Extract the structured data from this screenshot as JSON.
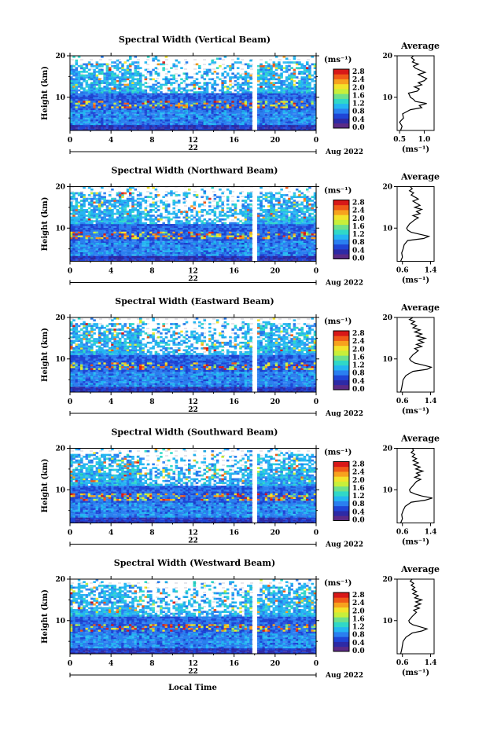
{
  "colors": {
    "colormap": [
      "#5b2a86",
      "#2d2aa6",
      "#1f45d6",
      "#2a7ff0",
      "#24b6f2",
      "#30d8c8",
      "#6fe08a",
      "#c8ef3a",
      "#f3e32a",
      "#f7a21e",
      "#f05a18",
      "#d81818"
    ],
    "missing": "#ffffff",
    "frame": "#000000"
  },
  "chart_data": [
    {
      "type": "heatmap",
      "title": "Spectral Width (Vertical Beam)",
      "ylabel": "Height (km)",
      "ylim": [
        2,
        20
      ],
      "xlim": [
        0,
        24
      ],
      "x_ticks": [
        "0",
        "4",
        "8",
        "12",
        "16",
        "20",
        "0"
      ],
      "date_label": "22",
      "month_label": "Aug 2022",
      "colorbar": {
        "unit": "(ms⁻¹)",
        "ticks": [
          "2.8",
          "2.4",
          "2.0",
          "1.6",
          "1.2",
          "0.8",
          "0.4",
          "0.0"
        ]
      },
      "average": {
        "title": "Average",
        "xlabel": "(ms⁻¹)",
        "xticks": [
          "0.5",
          "1.0"
        ],
        "xlim": [
          0.45,
          1.2
        ],
        "yticks": [
          "20",
          "10"
        ],
        "profile": [
          [
            2,
            0.52
          ],
          [
            3,
            0.55
          ],
          [
            4,
            0.5
          ],
          [
            5,
            0.58
          ],
          [
            6,
            0.56
          ],
          [
            7,
            0.72
          ],
          [
            7.5,
            0.95
          ],
          [
            8,
            0.9
          ],
          [
            8.5,
            1.05
          ],
          [
            9,
            0.82
          ],
          [
            9.5,
            0.78
          ],
          [
            10,
            0.72
          ],
          [
            10.5,
            0.7
          ],
          [
            11,
            0.68
          ],
          [
            11.5,
            0.86
          ],
          [
            12,
            0.9
          ],
          [
            12.5,
            0.8
          ],
          [
            13,
            0.95
          ],
          [
            13.5,
            0.88
          ],
          [
            14,
            1.0
          ],
          [
            14.5,
            1.05
          ],
          [
            15,
            0.96
          ],
          [
            15.5,
            0.88
          ],
          [
            16,
            1.02
          ],
          [
            16.5,
            0.92
          ],
          [
            17,
            0.82
          ],
          [
            17.5,
            0.78
          ],
          [
            18,
            0.88
          ],
          [
            18.5,
            0.76
          ],
          [
            19,
            0.8
          ],
          [
            19.5,
            0.74
          ],
          [
            20,
            0.78
          ]
        ]
      }
    },
    {
      "type": "heatmap",
      "title": "Spectral Width (Northward Beam)",
      "ylabel": "Height (km)",
      "ylim": [
        2,
        20
      ],
      "xlim": [
        0,
        24
      ],
      "x_ticks": [
        "0",
        "4",
        "8",
        "12",
        "16",
        "20",
        "0"
      ],
      "date_label": "22",
      "month_label": "Aug 2022",
      "colorbar": {
        "unit": "(ms⁻¹)",
        "ticks": [
          "2.8",
          "2.4",
          "2.0",
          "1.6",
          "1.2",
          "0.8",
          "0.4",
          "0.0"
        ]
      },
      "average": {
        "title": "Average",
        "xlabel": "(ms⁻¹)",
        "xticks": [
          "0.6",
          "1.4"
        ],
        "xlim": [
          0.45,
          1.5
        ],
        "yticks": [
          "20",
          "10"
        ],
        "profile": [
          [
            2,
            0.55
          ],
          [
            3,
            0.6
          ],
          [
            4,
            0.58
          ],
          [
            5,
            0.62
          ],
          [
            6,
            0.65
          ],
          [
            7,
            0.75
          ],
          [
            7.5,
            1.2
          ],
          [
            8,
            1.35
          ],
          [
            8.5,
            1.1
          ],
          [
            9,
            0.85
          ],
          [
            9.5,
            0.75
          ],
          [
            10,
            0.72
          ],
          [
            11,
            0.8
          ],
          [
            12,
            0.95
          ],
          [
            12.5,
            1.05
          ],
          [
            13,
            0.9
          ],
          [
            13.5,
            1.1
          ],
          [
            14,
            1.0
          ],
          [
            14.5,
            1.15
          ],
          [
            15,
            0.95
          ],
          [
            15.5,
            1.1
          ],
          [
            16,
            1.0
          ],
          [
            16.5,
            0.9
          ],
          [
            17,
            1.05
          ],
          [
            17.5,
            0.95
          ],
          [
            18,
            0.85
          ],
          [
            18.5,
            0.92
          ],
          [
            19,
            0.8
          ],
          [
            19.5,
            0.88
          ],
          [
            20,
            0.82
          ]
        ]
      }
    },
    {
      "type": "heatmap",
      "title": "Spectral Width (Eastward Beam)",
      "ylabel": "Height (km)",
      "ylim": [
        2,
        20
      ],
      "xlim": [
        0,
        24
      ],
      "x_ticks": [
        "0",
        "4",
        "8",
        "12",
        "16",
        "20",
        "0"
      ],
      "date_label": "22",
      "month_label": "Aug 2022",
      "colorbar": {
        "unit": "(ms⁻¹)",
        "ticks": [
          "2.8",
          "2.4",
          "2.0",
          "1.6",
          "1.2",
          "0.8",
          "0.4",
          "0.0"
        ]
      },
      "average": {
        "title": "Average",
        "xlabel": "(ms⁻¹)",
        "xticks": [
          "0.6",
          "1.4"
        ],
        "xlim": [
          0.45,
          1.5
        ],
        "yticks": [
          "20",
          "10"
        ],
        "profile": [
          [
            2,
            0.55
          ],
          [
            3,
            0.58
          ],
          [
            4,
            0.6
          ],
          [
            5,
            0.62
          ],
          [
            6,
            0.7
          ],
          [
            7,
            0.9
          ],
          [
            7.5,
            1.3
          ],
          [
            8,
            1.42
          ],
          [
            8.5,
            1.2
          ],
          [
            9,
            0.95
          ],
          [
            9.5,
            0.85
          ],
          [
            10,
            0.8
          ],
          [
            11,
            0.9
          ],
          [
            12,
            1.05
          ],
          [
            12.5,
            0.95
          ],
          [
            13,
            1.15
          ],
          [
            13.5,
            1.0
          ],
          [
            14,
            1.2
          ],
          [
            14.5,
            1.05
          ],
          [
            15,
            1.25
          ],
          [
            15.5,
            1.0
          ],
          [
            16,
            1.15
          ],
          [
            16.5,
            0.95
          ],
          [
            17,
            1.1
          ],
          [
            17.5,
            0.9
          ],
          [
            18,
            1.0
          ],
          [
            18.5,
            0.85
          ],
          [
            19,
            0.95
          ],
          [
            19.5,
            0.8
          ],
          [
            20,
            0.9
          ]
        ]
      }
    },
    {
      "type": "heatmap",
      "title": "Spectral Width (Southward Beam)",
      "ylabel": "Height (km)",
      "ylim": [
        2,
        20
      ],
      "xlim": [
        0,
        24
      ],
      "x_ticks": [
        "0",
        "4",
        "8",
        "12",
        "16",
        "20",
        "0"
      ],
      "date_label": "22",
      "month_label": "Aug 2022",
      "colorbar": {
        "unit": "(ms⁻¹)",
        "ticks": [
          "2.8",
          "2.4",
          "2.0",
          "1.6",
          "1.2",
          "0.8",
          "0.4",
          "0.0"
        ]
      },
      "average": {
        "title": "Average",
        "xlabel": "(ms⁻¹)",
        "xticks": [
          "0.6",
          "1.4"
        ],
        "xlim": [
          0.45,
          1.5
        ],
        "yticks": [
          "20",
          "10"
        ],
        "profile": [
          [
            2,
            0.55
          ],
          [
            3,
            0.6
          ],
          [
            4,
            0.58
          ],
          [
            5,
            0.62
          ],
          [
            6,
            0.68
          ],
          [
            7,
            0.85
          ],
          [
            7.5,
            1.25
          ],
          [
            8,
            1.45
          ],
          [
            8.5,
            1.15
          ],
          [
            9,
            0.95
          ],
          [
            9.5,
            0.82
          ],
          [
            10,
            0.8
          ],
          [
            11,
            0.9
          ],
          [
            12,
            1.0
          ],
          [
            12.5,
            1.12
          ],
          [
            13,
            0.95
          ],
          [
            13.5,
            1.1
          ],
          [
            14,
            1.0
          ],
          [
            14.5,
            1.18
          ],
          [
            15,
            0.98
          ],
          [
            15.5,
            1.1
          ],
          [
            16,
            0.92
          ],
          [
            16.5,
            1.05
          ],
          [
            17,
            0.9
          ],
          [
            17.5,
            1.0
          ],
          [
            18,
            0.88
          ],
          [
            18.5,
            0.95
          ],
          [
            19,
            0.85
          ],
          [
            19.5,
            0.92
          ],
          [
            20,
            0.88
          ]
        ]
      }
    },
    {
      "type": "heatmap",
      "title": "Spectral Width (Westward Beam)",
      "ylabel": "Height (km)",
      "ylim": [
        2,
        20
      ],
      "xlim": [
        0,
        24
      ],
      "x_ticks": [
        "0",
        "4",
        "8",
        "12",
        "16",
        "20",
        "0"
      ],
      "date_label": "22",
      "month_label": "Aug 2022",
      "colorbar": {
        "unit": "(ms⁻¹)",
        "ticks": [
          "2.8",
          "2.4",
          "2.0",
          "1.6",
          "1.2",
          "0.8",
          "0.4",
          "0.0"
        ]
      },
      "average": {
        "title": "Average",
        "xlabel": "(ms⁻¹)",
        "xticks": [
          "0.6",
          "1.4"
        ],
        "xlim": [
          0.45,
          1.5
        ],
        "yticks": [
          "20",
          "10"
        ],
        "profile": [
          [
            2,
            0.55
          ],
          [
            3,
            0.58
          ],
          [
            4,
            0.6
          ],
          [
            5,
            0.62
          ],
          [
            6,
            0.7
          ],
          [
            7,
            0.88
          ],
          [
            7.5,
            1.15
          ],
          [
            8,
            1.3
          ],
          [
            8.5,
            1.1
          ],
          [
            9,
            0.9
          ],
          [
            9.5,
            0.8
          ],
          [
            10,
            0.78
          ],
          [
            11,
            0.88
          ],
          [
            12,
            1.0
          ],
          [
            12.5,
            0.92
          ],
          [
            13,
            1.08
          ],
          [
            13.5,
            0.95
          ],
          [
            14,
            1.12
          ],
          [
            14.5,
            0.98
          ],
          [
            15,
            1.15
          ],
          [
            15.5,
            0.95
          ],
          [
            16,
            1.05
          ],
          [
            16.5,
            0.9
          ],
          [
            17,
            1.0
          ],
          [
            17.5,
            0.88
          ],
          [
            18,
            0.95
          ],
          [
            18.5,
            0.85
          ],
          [
            19,
            0.92
          ],
          [
            19.5,
            0.82
          ],
          [
            20,
            0.88
          ]
        ]
      }
    }
  ],
  "footer": {
    "xlabel": "Local Time"
  }
}
